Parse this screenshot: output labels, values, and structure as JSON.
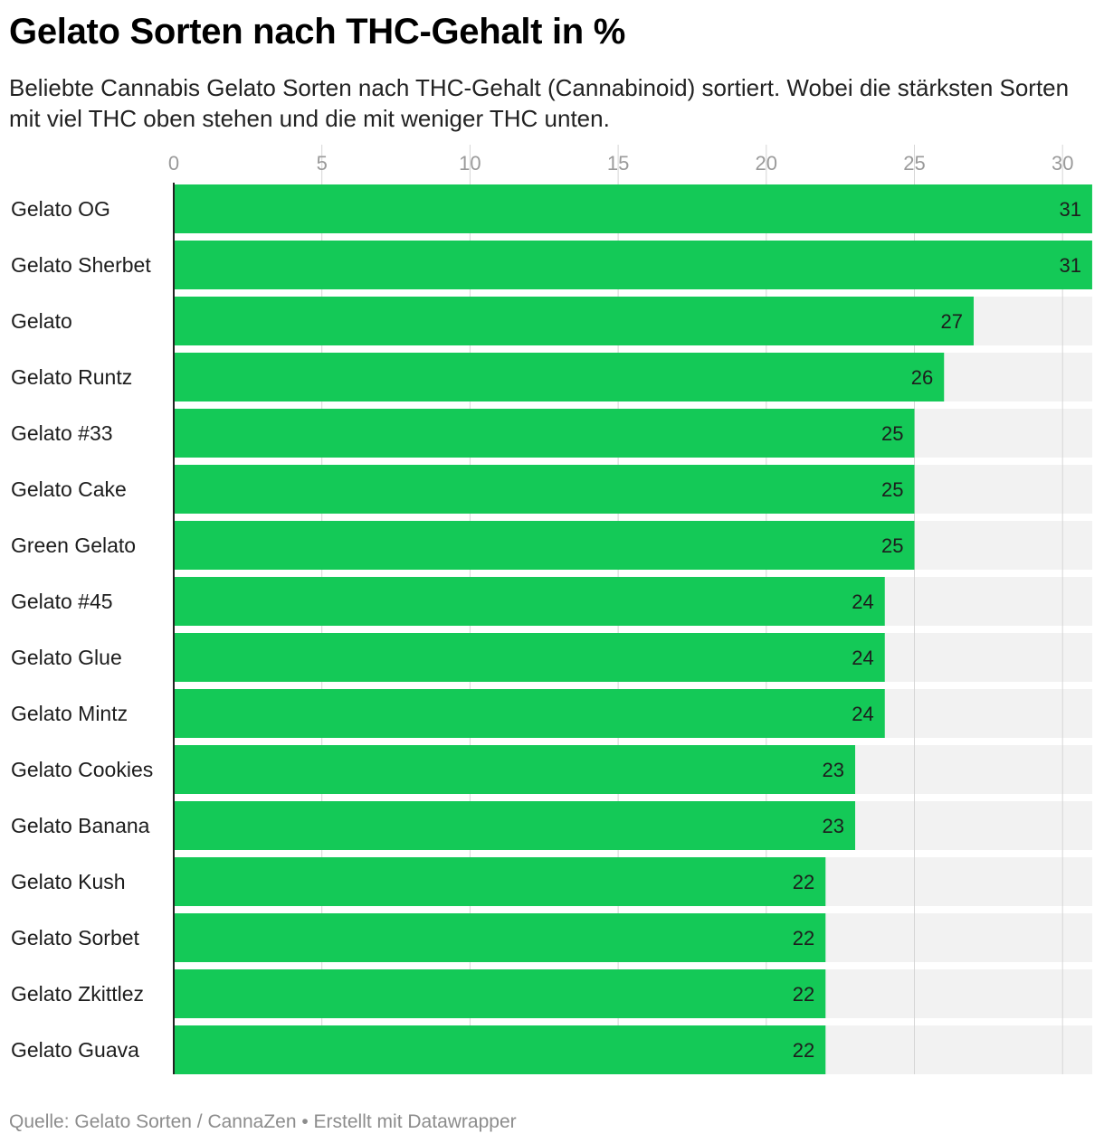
{
  "title": "Gelato Sorten nach THC-Gehalt in %",
  "subtitle": "Beliebte Cannabis Gelato Sorten nach THC-Gehalt (Cannabinoid) sortiert. Wobei die stärksten Sorten mit viel THC oben stehen und die mit weniger THC unten.",
  "footer": "Quelle: Gelato Sorten / CannaZen • Erstellt mit Datawrapper",
  "colors": {
    "bar": "#14c957",
    "background_bar": "#f2f2f2",
    "gridline": "#d6d6d6",
    "axis": "#222222"
  },
  "chart_data": {
    "type": "bar",
    "orientation": "horizontal",
    "xlim": [
      0,
      31
    ],
    "ticks": [
      0,
      5,
      10,
      15,
      20,
      25,
      30
    ],
    "grid": true,
    "categories": [
      "Gelato OG",
      "Gelato Sherbet",
      "Gelato",
      "Gelato Runtz",
      "Gelato #33",
      "Gelato Cake",
      "Green Gelato",
      "Gelato #45",
      "Gelato Glue",
      "Gelato Mintz",
      "Gelato Cookies",
      "Gelato Banana",
      "Gelato Kush",
      "Gelato Sorbet",
      "Gelato Zkittlez",
      "Gelato Guava"
    ],
    "values": [
      31,
      31,
      27,
      26,
      25,
      25,
      25,
      24,
      24,
      24,
      23,
      23,
      22,
      22,
      22,
      22
    ]
  }
}
